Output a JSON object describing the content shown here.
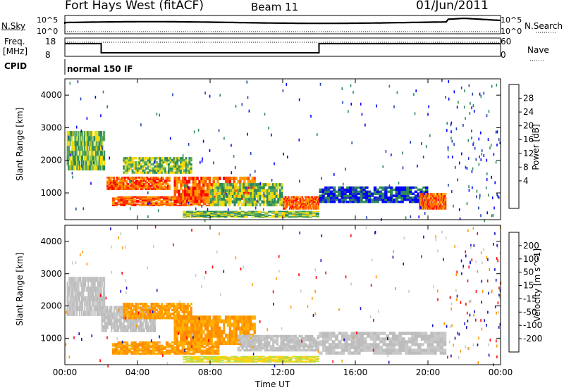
{
  "header": {
    "station": "Fort Hays West (fitACF)",
    "beam": "Beam 11",
    "date": "01/Jun/2011"
  },
  "noise_panel": {
    "left_label": "N.Sky",
    "right_label": "N.Search",
    "ticks": [
      "10^5",
      "10^0"
    ]
  },
  "freq_panel": {
    "left_label_1": "Freq.",
    "left_label_2": "[MHz]",
    "ticks": [
      "18",
      "8"
    ],
    "right_label": "Nave",
    "right_ticks": [
      "60",
      "0"
    ]
  },
  "cpid": {
    "label": "CPID",
    "value": "normal 150 IF"
  },
  "chart_data": [
    {
      "type": "heatmap",
      "title": "Power",
      "ylabel": "Slant Range [km]",
      "xlabel": "Time UT",
      "x_ticks": [
        "00:00",
        "04:00",
        "08:00",
        "12:00",
        "16:00",
        "20:00",
        "00:00"
      ],
      "y_ticks": [
        "1000",
        "2000",
        "3000",
        "4000"
      ],
      "xlim": [
        0,
        24
      ],
      "ylim": [
        180,
        4500
      ],
      "colorbar": {
        "label": "Power [dB]",
        "ticks": [
          "28",
          "24",
          "20",
          "16",
          "12",
          "8",
          "4"
        ],
        "colors": [
          "#ff0000",
          "#ff5000",
          "#ff9a00",
          "#ffd800",
          "#c8e43c",
          "#5fa95f",
          "#2e8b57",
          "#2040b0",
          "#0000ff"
        ]
      },
      "bands": [
        {
          "t0": 0.1,
          "t1": 2.2,
          "r0": 1700,
          "r1": 2900,
          "level": "mid"
        },
        {
          "t0": 2.3,
          "t1": 5.8,
          "r0": 1100,
          "r1": 1500,
          "level": "high"
        },
        {
          "t0": 2.6,
          "t1": 8.5,
          "r0": 600,
          "r1": 900,
          "level": "high"
        },
        {
          "t0": 3.2,
          "t1": 7.0,
          "r0": 1600,
          "r1": 2100,
          "level": "mid"
        },
        {
          "t0": 6.0,
          "t1": 10.5,
          "r0": 700,
          "r1": 1500,
          "level": "high"
        },
        {
          "t0": 8.0,
          "t1": 12.0,
          "r0": 600,
          "r1": 1300,
          "level": "mid"
        },
        {
          "t0": 12.0,
          "t1": 14.0,
          "r0": 500,
          "r1": 900,
          "level": "high"
        },
        {
          "t0": 14.0,
          "t1": 20.0,
          "r0": 700,
          "r1": 1200,
          "level": "low"
        },
        {
          "t0": 19.5,
          "t1": 21.0,
          "r0": 500,
          "r1": 1000,
          "level": "high"
        },
        {
          "t0": 6.5,
          "t1": 14.0,
          "r0": 250,
          "r1": 450,
          "level": "mid"
        }
      ]
    },
    {
      "type": "heatmap",
      "title": "Velocity",
      "ylabel": "Slant Range [km]",
      "xlabel": "Time UT",
      "x_ticks": [
        "00:00",
        "04:00",
        "08:00",
        "12:00",
        "16:00",
        "20:00",
        "00:00"
      ],
      "y_ticks": [
        "1000",
        "2000",
        "3000",
        "4000"
      ],
      "xlim": [
        0,
        24
      ],
      "ylim": [
        180,
        4500
      ],
      "colorbar": {
        "label": "Velocity [m s^-1]",
        "ticks": [
          "200",
          "100",
          "50",
          "15",
          "-15",
          "-50",
          "-100",
          "-200"
        ],
        "colors": [
          "#1010c0",
          "#2080d0",
          "#2e8b57",
          "#66cc33",
          "#c8c8c8",
          "#ffd700",
          "#ff9a00",
          "#ff5000",
          "#ff0000"
        ]
      },
      "bands": [
        {
          "t0": 0.1,
          "t1": 2.2,
          "r0": 1700,
          "r1": 2900,
          "level": "gray"
        },
        {
          "t0": 2.0,
          "t1": 5.0,
          "r0": 1200,
          "r1": 2000,
          "level": "gray"
        },
        {
          "t0": 2.6,
          "t1": 8.5,
          "r0": 500,
          "r1": 900,
          "level": "orange"
        },
        {
          "t0": 3.2,
          "t1": 7.0,
          "r0": 1600,
          "r1": 2100,
          "level": "orange"
        },
        {
          "t0": 6.0,
          "t1": 10.5,
          "r0": 800,
          "r1": 1700,
          "level": "orange"
        },
        {
          "t0": 9.5,
          "t1": 14.0,
          "r0": 600,
          "r1": 1100,
          "level": "gray"
        },
        {
          "t0": 14.0,
          "t1": 21.0,
          "r0": 500,
          "r1": 1200,
          "level": "gray"
        },
        {
          "t0": 6.5,
          "t1": 14.0,
          "r0": 250,
          "r1": 450,
          "level": "yellow"
        }
      ]
    }
  ]
}
